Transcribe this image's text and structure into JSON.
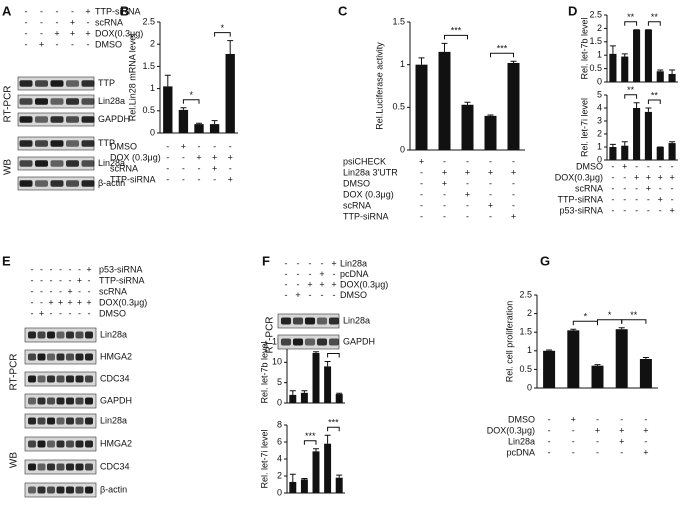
{
  "chart_data": [
    {
      "type": "bar",
      "panel": "B",
      "ylabel": "Rel.Lin28 mRNA level",
      "values": [
        1.05,
        0.52,
        0.2,
        0.2,
        1.78
      ],
      "errors": [
        0.25,
        0.05,
        0.02,
        0.08,
        0.3
      ],
      "color": "#111111",
      "ylim": [
        0,
        2.5
      ],
      "yticks": [
        0,
        0.5,
        1,
        1.5,
        2,
        2.5
      ],
      "significance": [
        {
          "text": "*",
          "between": [
            1,
            2
          ]
        },
        {
          "text": "*",
          "between": [
            3,
            4
          ]
        }
      ],
      "conditions": [
        {
          "label": "DMSO",
          "marks": [
            "-",
            "+",
            "-",
            "-",
            "-"
          ]
        },
        {
          "label": "DOX (0.3μg)",
          "marks": [
            "-",
            "-",
            "+",
            "+",
            "+"
          ]
        },
        {
          "label": "scRNA",
          "marks": [
            "-",
            "-",
            "-",
            "+",
            "-"
          ]
        },
        {
          "label": "TTP-siRNA",
          "marks": [
            "-",
            "-",
            "-",
            "-",
            "+"
          ]
        }
      ]
    },
    {
      "type": "bar",
      "panel": "C",
      "ylabel": "Rel.Luciferase activity",
      "values": [
        1.0,
        1.15,
        0.53,
        0.4,
        1.02
      ],
      "errors": [
        0.08,
        0.1,
        0.03,
        0.01,
        0.02
      ],
      "color": "#111111",
      "ylim": [
        0,
        1.5
      ],
      "yticks": [
        0,
        0.5,
        1,
        1.5
      ],
      "significance": [
        {
          "text": "***",
          "between": [
            1,
            2
          ]
        },
        {
          "text": "***",
          "between": [
            3,
            4
          ]
        }
      ],
      "conditions": [
        {
          "label": "psiCHECK",
          "marks": [
            "+",
            "-",
            "-",
            "-",
            "-"
          ]
        },
        {
          "label": "Lin28a 3'UTR",
          "marks": [
            "-",
            "+",
            "+",
            "+",
            "+"
          ]
        },
        {
          "label": "DMSO",
          "marks": [
            "-",
            "+",
            "-",
            "-",
            "-"
          ]
        },
        {
          "label": "DOX (0.3μg)",
          "marks": [
            "-",
            "-",
            "+",
            "-",
            "-"
          ]
        },
        {
          "label": "scRNA",
          "marks": [
            "-",
            "-",
            "-",
            "+",
            "-"
          ]
        },
        {
          "label": "TTP-siRNA",
          "marks": [
            "-",
            "-",
            "-",
            "-",
            "+"
          ]
        }
      ]
    },
    {
      "type": "bar",
      "panel": "D",
      "ylabel": "Rel. let-7b level",
      "values": [
        1.05,
        0.95,
        1.95,
        1.95,
        0.4,
        0.3
      ],
      "errors": [
        0.3,
        0.1,
        0,
        0,
        0.05,
        0.15
      ],
      "color": "#111111",
      "ylim": [
        0,
        2.5
      ],
      "yticks": [
        0,
        0.5,
        1,
        1.5,
        2,
        2.5
      ],
      "significance": [
        {
          "text": "**",
          "between": [
            1,
            2
          ]
        },
        {
          "text": "**",
          "between": [
            3,
            4
          ]
        }
      ]
    },
    {
      "type": "bar",
      "ylabel": "Rel. let-7i level",
      "values": [
        1.0,
        1.1,
        4.0,
        3.7,
        1.0,
        1.3
      ],
      "errors": [
        0.2,
        0.3,
        0.4,
        0.3,
        0,
        0.1
      ],
      "color": "#111111",
      "ylim": [
        0,
        5
      ],
      "yticks": [
        0,
        1,
        2,
        3,
        4,
        5
      ],
      "significance": [
        {
          "text": "**",
          "between": [
            1,
            2
          ]
        },
        {
          "text": "**",
          "between": [
            3,
            4
          ]
        }
      ],
      "conditions": [
        {
          "label": "DMSO",
          "marks": [
            "-",
            "+",
            "-",
            "-",
            "-",
            "-"
          ]
        },
        {
          "label": "DOX(0.3μg)",
          "marks": [
            "-",
            "-",
            "+",
            "+",
            "+",
            "+"
          ]
        },
        {
          "label": "scRNA",
          "marks": [
            "-",
            "-",
            "-",
            "+",
            "-",
            "-"
          ]
        },
        {
          "label": "TTP-siRNA",
          "marks": [
            "-",
            "-",
            "-",
            "-",
            "+",
            "-"
          ]
        },
        {
          "label": "p53-siRNA",
          "marks": [
            "-",
            "-",
            "-",
            "-",
            "-",
            "+"
          ]
        }
      ]
    },
    {
      "type": "bar",
      "ylabel": "Rel. let-7b level",
      "values": [
        2.0,
        2.5,
        12.3,
        9.0,
        2.2
      ],
      "errors": [
        1.0,
        0.5,
        0.3,
        1.2,
        0.2
      ],
      "color": "#111111",
      "ylim": [
        0,
        15
      ],
      "yticks": [
        0,
        5,
        10,
        15
      ],
      "significance": [
        {
          "text": "***",
          "between": [
            1,
            2
          ]
        },
        {
          "text": "***",
          "between": [
            3,
            4
          ]
        }
      ]
    },
    {
      "type": "bar",
      "ylabel": "Rel. let-7i level",
      "values": [
        1.3,
        1.6,
        4.9,
        5.8,
        1.8
      ],
      "errors": [
        0.9,
        0.1,
        0.3,
        1.0,
        0.3
      ],
      "color": "#111111",
      "ylim": [
        0,
        8
      ],
      "yticks": [
        0,
        2,
        4,
        6,
        8
      ],
      "significance": [
        {
          "text": "***",
          "between": [
            1,
            2
          ]
        },
        {
          "text": "***",
          "between": [
            3,
            4
          ]
        }
      ]
    },
    {
      "type": "bar",
      "panel": "G",
      "ylabel": "Rel. cell proliferation",
      "values": [
        1.0,
        1.55,
        0.6,
        1.58,
        0.78
      ],
      "errors": [
        0.02,
        0.03,
        0.03,
        0.04,
        0.04
      ],
      "color": "#111111",
      "ylim": [
        0,
        2.5
      ],
      "yticks": [
        0,
        0.5,
        1,
        1.5,
        2,
        2.5
      ],
      "significance": [
        {
          "text": "*",
          "between": [
            1,
            2
          ]
        },
        {
          "text": "*",
          "between": [
            2,
            3
          ]
        },
        {
          "text": "**",
          "between": [
            3,
            4
          ]
        }
      ],
      "conditions": [
        {
          "label": "DMSO",
          "marks": [
            "-",
            "+",
            "-",
            "-",
            "-"
          ]
        },
        {
          "label": "DOX(0.3μg)",
          "marks": [
            "-",
            "-",
            "+",
            "+",
            "+"
          ]
        },
        {
          "label": "Lin28a",
          "marks": [
            "-",
            "-",
            "-",
            "+",
            "-"
          ]
        },
        {
          "label": "pcDNA",
          "marks": [
            "-",
            "-",
            "-",
            "-",
            "+"
          ]
        }
      ]
    }
  ],
  "blots": [
    {
      "panel": "A",
      "conditions": [
        {
          "label": "TTP-siRNA",
          "marks": [
            "-",
            "-",
            "-",
            "-",
            "+"
          ]
        },
        {
          "label": "scRNA",
          "marks": [
            "-",
            "-",
            "-",
            "+",
            "-"
          ]
        },
        {
          "label": "DOX(0.3μg)",
          "marks": [
            "-",
            "-",
            "+",
            "+",
            "+"
          ]
        },
        {
          "label": "DMSO",
          "marks": [
            "-",
            "+",
            "-",
            "-",
            "-"
          ]
        }
      ],
      "sections": [
        {
          "label": "RT-PCR",
          "bands": [
            "TTP",
            "Lin28a",
            "GAPDH"
          ]
        },
        {
          "label": "WB",
          "bands": [
            "TTP",
            "Lin28a",
            "β-actin"
          ]
        }
      ]
    },
    {
      "panel": "E",
      "conditions": [
        {
          "label": "p53-siRNA",
          "marks": [
            "-",
            "-",
            "-",
            "-",
            "-",
            "-",
            "+"
          ]
        },
        {
          "label": "TTP-siRNA",
          "marks": [
            "-",
            "-",
            "-",
            "-",
            "-",
            "+",
            "-"
          ]
        },
        {
          "label": "scRNA",
          "marks": [
            "-",
            "-",
            "-",
            "-",
            "+",
            "-",
            "-"
          ]
        },
        {
          "label": "DOX(0.3μg)",
          "marks": [
            "-",
            "-",
            "+",
            "+",
            "+",
            "+",
            "+"
          ]
        },
        {
          "label": "DMSO",
          "marks": [
            "-",
            "+",
            "-",
            "-",
            "-",
            "-",
            "-"
          ]
        }
      ],
      "sections": [
        {
          "label": "RT-PCR",
          "bands": [
            "Lin28a",
            "HMGA2",
            "CDC34",
            "GAPDH"
          ]
        },
        {
          "label": "WB",
          "bands": [
            "Lin28a",
            "HMGA2",
            "CDC34",
            "β-actin"
          ]
        }
      ]
    },
    {
      "panel": "F",
      "conditions": [
        {
          "label": "Lin28a",
          "marks": [
            "-",
            "-",
            "-",
            "-",
            "+"
          ]
        },
        {
          "label": "pcDNA",
          "marks": [
            "-",
            "-",
            "-",
            "+",
            "-"
          ]
        },
        {
          "label": "DOX(0.3μg)",
          "marks": [
            "-",
            "-",
            "+",
            "+",
            "+"
          ]
        },
        {
          "label": "DMSO",
          "marks": [
            "-",
            "+",
            "-",
            "-",
            "-"
          ]
        }
      ],
      "sections": [
        {
          "label": "RT-PCR",
          "bands": [
            "Lin28a",
            "GAPDH"
          ]
        }
      ]
    }
  ]
}
